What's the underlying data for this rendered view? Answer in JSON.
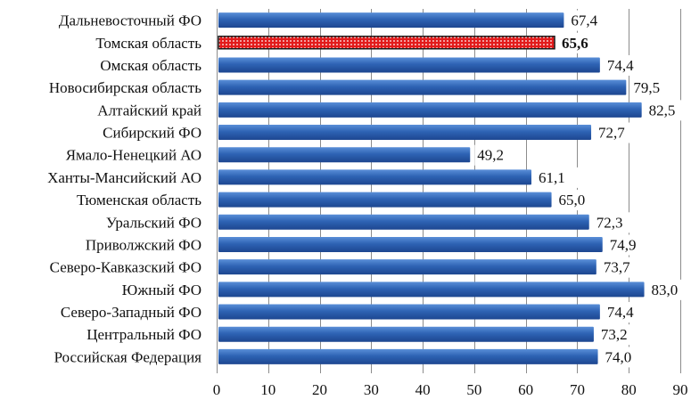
{
  "chart_data": {
    "type": "bar",
    "orientation": "horizontal",
    "categories": [
      "Дальневосточный ФО",
      "Томская область",
      "Омская область",
      "Новосибирская область",
      "Алтайский край",
      "Сибирский ФО",
      "Ямало-Ненецкий АО",
      "Ханты-Мансийский АО",
      "Тюменская область",
      "Уральский  ФО",
      "Приволжский ФО",
      "Северо-Кавказский ФО",
      "Южный  ФО",
      "Северо-Западный ФО",
      "Центральный ФО",
      "Российская Федерация"
    ],
    "values": [
      67.4,
      65.6,
      74.4,
      79.5,
      82.5,
      72.7,
      49.2,
      61.1,
      65.0,
      72.3,
      74.9,
      73.7,
      83.0,
      74.4,
      73.2,
      74.0
    ],
    "value_labels": [
      "67,4",
      "65,6",
      "74,4",
      "79,5",
      "82,5",
      "72,7",
      "49,2",
      "61,1",
      "65,0",
      "72,3",
      "74,9",
      "73,7",
      "83,0",
      "74,4",
      "73,2",
      "74,0"
    ],
    "highlight_index": 1,
    "xlim": [
      0,
      90
    ],
    "xticks": [
      0,
      10,
      20,
      30,
      40,
      50,
      60,
      70,
      80,
      90
    ],
    "title": "",
    "xlabel": "",
    "ylabel": "",
    "grid": true,
    "legend": false,
    "colors": {
      "bar": "#2e63b4",
      "bar_light": "#5a8fd8",
      "bar_dark": "#1d4690",
      "highlight_fill": "#e21b1b",
      "highlight_dots": "#ffffff",
      "highlight_border": "#1a1a1a"
    }
  }
}
